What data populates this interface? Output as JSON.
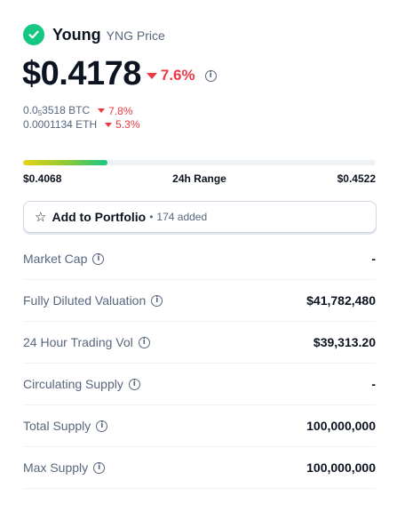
{
  "coin": {
    "name": "Young",
    "subtitle": "YNG Price",
    "price": "$0.4178",
    "change_24h": "7.6%",
    "change_fraction": 0.076,
    "colors": {
      "positive": "#16c784",
      "negative": "#ea3943"
    },
    "icon": "check-icon"
  },
  "conversions": [
    {
      "prefix": "0.0",
      "sub": "5",
      "suffix": "3518 BTC",
      "change": "7.8%"
    },
    {
      "prefix": "0.0001134 ETH",
      "sub": "",
      "suffix": "",
      "change": "5.3%"
    }
  ],
  "range": {
    "low": "$0.4068",
    "label": "24h Range",
    "high": "$0.4522",
    "position_fraction": 0.24
  },
  "portfolio": {
    "label": "Add to Portfolio",
    "separator": "•",
    "added": "174 added",
    "icon": "star-icon"
  },
  "stats": [
    {
      "label": "Market Cap",
      "value": "-"
    },
    {
      "label": "Fully Diluted Valuation",
      "value": "$41,782,480"
    },
    {
      "label": "24 Hour Trading Vol",
      "value": "$39,313.20"
    },
    {
      "label": "Circulating Supply",
      "value": "-"
    },
    {
      "label": "Total Supply",
      "value": "100,000,000"
    },
    {
      "label": "Max Supply",
      "value": "100,000,000"
    }
  ]
}
